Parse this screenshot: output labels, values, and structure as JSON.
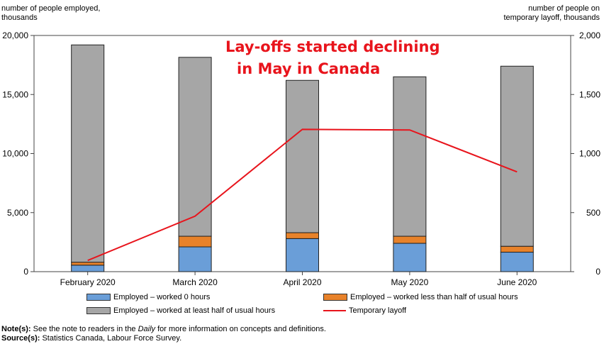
{
  "left_axis_label_line1": "number of people employed,",
  "left_axis_label_line2": "thousands",
  "right_axis_label_line1": "number of people on",
  "right_axis_label_line2": "temporary layoff, thousands",
  "annotation_line1": "Lay-offs started declining",
  "annotation_line2": "in May in Canada",
  "note_label": "Note(s):",
  "note_text_pre": " See the note to readers in the ",
  "note_text_italic": "Daily",
  "note_text_post": " for more information on concepts and definitions.",
  "source_label": "Source(s):",
  "source_text": " Statistics Canada, Labour Force Survey.",
  "colors": {
    "worked_0": "#6a9ed8",
    "worked_less_half": "#e8822a",
    "worked_at_least_half": "#a6a6a6",
    "layoff_line": "#e8141c"
  },
  "chart_data": {
    "type": "bar",
    "stacked": true,
    "categories": [
      "February 2020",
      "March 2020",
      "April 2020",
      "May 2020",
      "June 2020"
    ],
    "series": [
      {
        "name": "Employed – worked 0 hours",
        "values": [
          550,
          2100,
          2800,
          2400,
          1650
        ],
        "axis": "left"
      },
      {
        "name": "Employed – worked less than half of usual hours",
        "values": [
          250,
          900,
          500,
          600,
          500
        ],
        "axis": "left"
      },
      {
        "name": "Employed – worked at least half of usual hours",
        "values": [
          18400,
          15150,
          12900,
          13500,
          15250
        ],
        "axis": "left"
      },
      {
        "name": "Temporary layoff",
        "type": "line",
        "values": [
          95,
          470,
          1205,
          1200,
          845
        ],
        "axis": "right"
      }
    ],
    "left_ylim": [
      0,
      20000
    ],
    "left_ticks": [
      "0",
      "5,000",
      "10,000",
      "15,000",
      "20,000"
    ],
    "right_ylim": [
      0,
      2000
    ],
    "right_ticks": [
      "0",
      "500",
      "1,000",
      "1,500",
      "2,000"
    ],
    "grid": false,
    "legend_position": "bottom"
  }
}
